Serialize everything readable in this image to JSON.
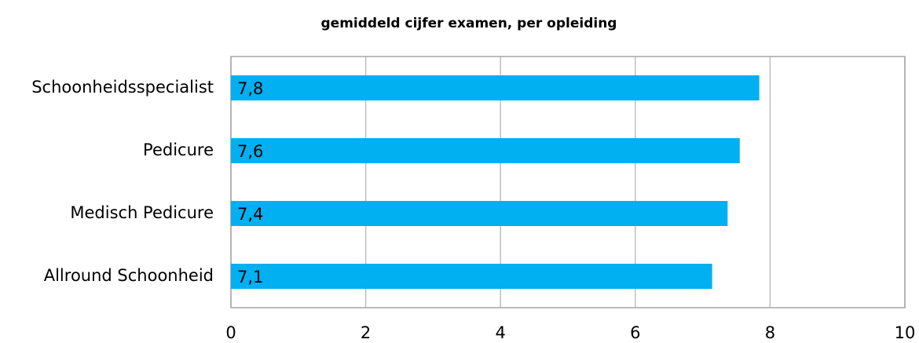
{
  "chart_data": {
    "type": "bar",
    "orientation": "horizontal",
    "title": "gemiddeld cijfer examen, per opleiding",
    "categories": [
      "Schoonheidsspecialist",
      "Pedicure",
      "Medisch Pedicure",
      "Allround Schoonheid"
    ],
    "values": [
      7.84,
      7.55,
      7.37,
      7.14
    ],
    "value_labels": [
      "7,8",
      "7,6",
      "7,4",
      "7,1"
    ],
    "color": "#00b0f0",
    "xlim": [
      0,
      10
    ],
    "xticks": [
      0,
      2,
      4,
      6,
      8,
      10
    ],
    "grid": true
  }
}
